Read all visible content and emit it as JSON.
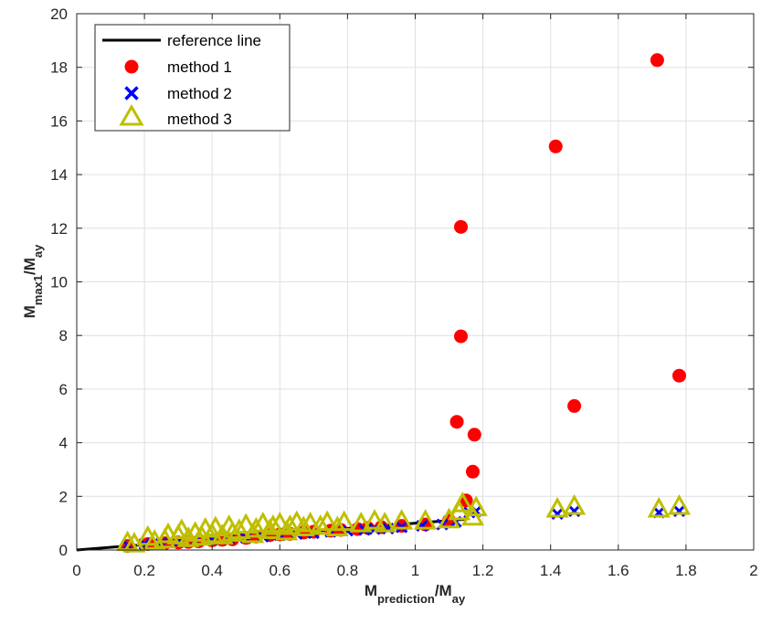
{
  "chart_data": {
    "type": "scatter",
    "xlim": [
      0,
      2
    ],
    "ylim": [
      0,
      20
    ],
    "xticks": [
      0,
      0.2,
      0.4,
      0.6,
      0.8,
      1,
      1.2,
      1.4,
      1.6,
      1.8,
      2
    ],
    "yticks": [
      0,
      2,
      4,
      6,
      8,
      10,
      12,
      14,
      16,
      18,
      20
    ],
    "xtick_labels": [
      "0",
      "0.2",
      "0.4",
      "0.6",
      "0.8",
      "1",
      "1.2",
      "1.4",
      "1.6",
      "1.8",
      "2"
    ],
    "ytick_labels": [
      "0",
      "2",
      "4",
      "6",
      "8",
      "10",
      "12",
      "14",
      "16",
      "18",
      "20"
    ],
    "xlabel": {
      "main": "M",
      "sub": "prediction",
      "tail": "/M",
      "sub2": "ay"
    },
    "ylabel": {
      "main": "M",
      "sub": "max1",
      "tail": "/M",
      "sub2": "ay"
    },
    "grid": true,
    "legend_position": "top-left",
    "reference_line": {
      "name": "reference line",
      "x": [
        0,
        1.15
      ],
      "y": [
        0,
        1.15
      ],
      "color": "#000000"
    },
    "series": [
      {
        "name": "method 1",
        "marker": "circle",
        "color": "#ff0000",
        "points": [
          [
            0.15,
            0.15
          ],
          [
            0.21,
            0.22
          ],
          [
            0.26,
            0.25
          ],
          [
            0.3,
            0.28
          ],
          [
            0.33,
            0.3
          ],
          [
            0.36,
            0.32
          ],
          [
            0.4,
            0.36
          ],
          [
            0.43,
            0.38
          ],
          [
            0.46,
            0.4
          ],
          [
            0.5,
            0.45
          ],
          [
            0.53,
            0.5
          ],
          [
            0.57,
            0.55
          ],
          [
            0.6,
            0.58
          ],
          [
            0.63,
            0.6
          ],
          [
            0.67,
            0.65
          ],
          [
            0.7,
            0.68
          ],
          [
            0.75,
            0.72
          ],
          [
            0.78,
            0.75
          ],
          [
            0.83,
            0.78
          ],
          [
            0.86,
            0.82
          ],
          [
            0.9,
            0.85
          ],
          [
            0.96,
            0.9
          ],
          [
            1.03,
            0.95
          ],
          [
            1.1,
            1.1
          ],
          [
            1.15,
            1.85
          ],
          [
            1.123,
            4.78
          ],
          [
            1.135,
            7.97
          ],
          [
            1.135,
            12.05
          ],
          [
            1.17,
            2.92
          ],
          [
            1.175,
            4.3
          ],
          [
            1.415,
            15.05
          ],
          [
            1.47,
            5.37
          ],
          [
            1.715,
            18.27
          ],
          [
            1.78,
            6.5
          ]
        ]
      },
      {
        "name": "method 2",
        "marker": "x",
        "color": "#0000ff",
        "points": [
          [
            0.15,
            0.18
          ],
          [
            0.2,
            0.22
          ],
          [
            0.25,
            0.25
          ],
          [
            0.3,
            0.3
          ],
          [
            0.35,
            0.33
          ],
          [
            0.4,
            0.38
          ],
          [
            0.45,
            0.4
          ],
          [
            0.5,
            0.45
          ],
          [
            0.55,
            0.5
          ],
          [
            0.6,
            0.55
          ],
          [
            0.65,
            0.6
          ],
          [
            0.7,
            0.63
          ],
          [
            0.75,
            0.68
          ],
          [
            0.8,
            0.72
          ],
          [
            0.85,
            0.75
          ],
          [
            0.88,
            0.78
          ],
          [
            0.92,
            0.8
          ],
          [
            0.96,
            0.85
          ],
          [
            1.02,
            0.9
          ],
          [
            1.08,
            0.95
          ],
          [
            1.12,
            1.05
          ],
          [
            1.16,
            1.4
          ],
          [
            1.18,
            1.45
          ],
          [
            1.42,
            1.35
          ],
          [
            1.47,
            1.45
          ],
          [
            1.72,
            1.4
          ],
          [
            1.78,
            1.45
          ]
        ]
      },
      {
        "name": "method 3",
        "marker": "triangle",
        "color": "#bfbf00",
        "points": [
          [
            0.15,
            0.25
          ],
          [
            0.17,
            0.2
          ],
          [
            0.21,
            0.45
          ],
          [
            0.23,
            0.3
          ],
          [
            0.26,
            0.35
          ],
          [
            0.27,
            0.55
          ],
          [
            0.3,
            0.5
          ],
          [
            0.31,
            0.7
          ],
          [
            0.33,
            0.4
          ],
          [
            0.35,
            0.6
          ],
          [
            0.37,
            0.45
          ],
          [
            0.38,
            0.75
          ],
          [
            0.4,
            0.55
          ],
          [
            0.41,
            0.8
          ],
          [
            0.43,
            0.5
          ],
          [
            0.45,
            0.85
          ],
          [
            0.46,
            0.6
          ],
          [
            0.48,
            0.7
          ],
          [
            0.5,
            0.9
          ],
          [
            0.52,
            0.55
          ],
          [
            0.53,
            0.75
          ],
          [
            0.55,
            0.95
          ],
          [
            0.57,
            0.7
          ],
          [
            0.58,
            0.85
          ],
          [
            0.6,
            0.95
          ],
          [
            0.62,
            0.65
          ],
          [
            0.63,
            0.85
          ],
          [
            0.65,
            1.0
          ],
          [
            0.67,
            0.8
          ],
          [
            0.69,
            0.95
          ],
          [
            0.72,
            0.85
          ],
          [
            0.74,
            1.0
          ],
          [
            0.77,
            0.8
          ],
          [
            0.79,
            1.0
          ],
          [
            0.84,
            0.95
          ],
          [
            0.88,
            1.05
          ],
          [
            0.91,
            0.95
          ],
          [
            0.96,
            1.05
          ],
          [
            1.03,
            1.05
          ],
          [
            1.1,
            1.1
          ],
          [
            1.13,
            1.4
          ],
          [
            1.14,
            1.7
          ],
          [
            1.17,
            1.2
          ],
          [
            1.18,
            1.55
          ],
          [
            1.42,
            1.5
          ],
          [
            1.47,
            1.6
          ],
          [
            1.72,
            1.5
          ],
          [
            1.78,
            1.6
          ]
        ]
      }
    ]
  }
}
